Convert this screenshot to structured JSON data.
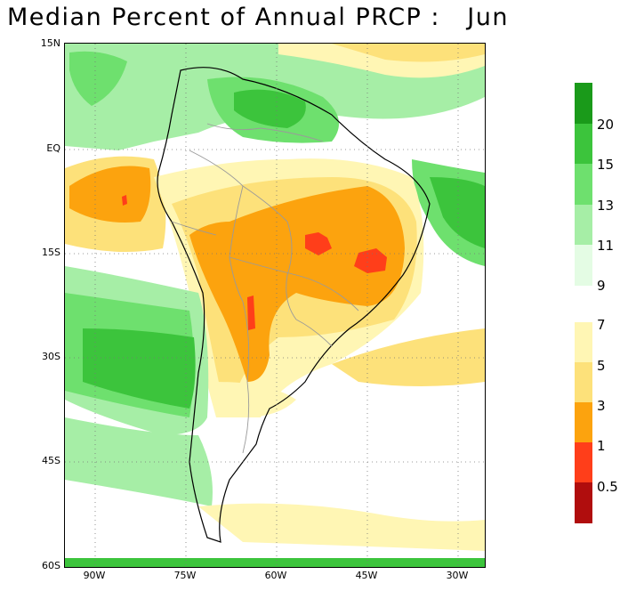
{
  "title": "Median Percent of Annual PRCP :   Jun",
  "map": {
    "lat_labels": [
      "15N",
      "EQ",
      "15S",
      "30S",
      "45S",
      "60S"
    ],
    "lon_labels": [
      "90W",
      "75W",
      "60W",
      "45W",
      "30W"
    ]
  },
  "legend": {
    "upper_labels": [
      "20",
      "15",
      "13",
      "11",
      "9"
    ],
    "lower_labels": [
      "7",
      "5",
      "3",
      "1",
      "0.5"
    ],
    "colors": {
      "above_20": "#1a9a1a",
      "15_20": "#3cc43c",
      "13_15": "#6ee06e",
      "11_13": "#a6eea6",
      "9_11": "#e4fce4",
      "5_7": "#fff6b4",
      "3_5": "#fde17a",
      "1_3": "#fca30e",
      "0.5_1": "#ff3e1a",
      "below_0.5": "#b00d0d"
    }
  }
}
